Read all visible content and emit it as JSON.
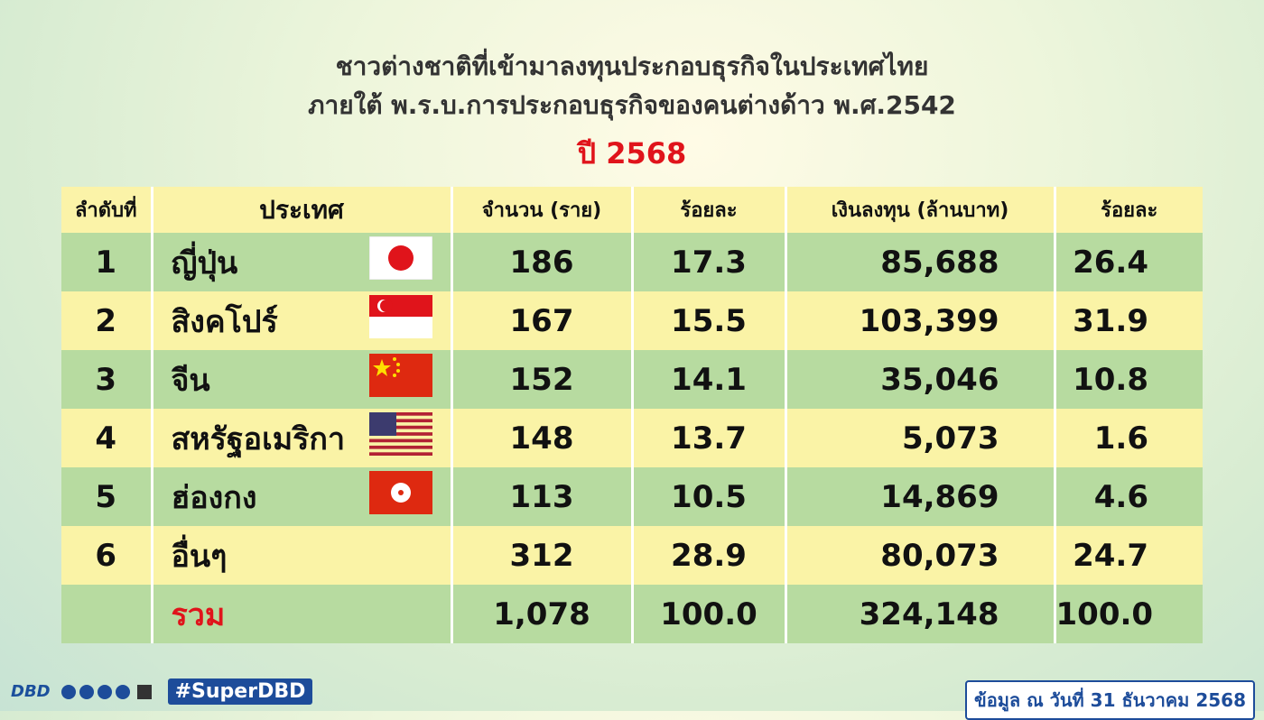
{
  "header": {
    "title_line1": "ชาวต่างชาติที่เข้ามาลงทุนประกอบธุรกิจในประเทศไทย",
    "title_line2": "ภายใต้ พ.ร.บ.การประกอบธุรกิจของคนต่างด้าว พ.ศ.2542",
    "year": "ปี 2568"
  },
  "table": {
    "columns": [
      "ลำดับที่",
      "ประเทศ",
      "จำนวน (ราย)",
      "ร้อยละ",
      "เงินลงทุน (ล้านบาท)",
      "ร้อยละ"
    ],
    "rows": [
      [
        "1",
        "ญี่ปุ่น",
        "186",
        "17.3",
        "85,688",
        "26.4"
      ],
      [
        "2",
        "สิงคโปร์",
        "167",
        "15.5",
        "103,399",
        "31.9"
      ],
      [
        "3",
        "จีน",
        "152",
        "14.1",
        "35,046",
        "10.8"
      ],
      [
        "4",
        "สหรัฐอเมริกา",
        "148",
        "13.7",
        "5,073",
        "1.6"
      ],
      [
        "5",
        "ฮ่องกง",
        "113",
        "10.5",
        "14,869",
        "4.6"
      ],
      [
        "6",
        "อื่นๆ",
        "312",
        "28.9",
        "80,073",
        "24.7"
      ]
    ],
    "total": [
      "รวม",
      "1,078",
      "100.0",
      "324,148",
      "100.0"
    ]
  },
  "footer": {
    "logo": "DBD",
    "hashtag": "#SuperDBD",
    "note": "ข้อมูล ณ วันที่ 31 ธันวาคม 2568"
  }
}
